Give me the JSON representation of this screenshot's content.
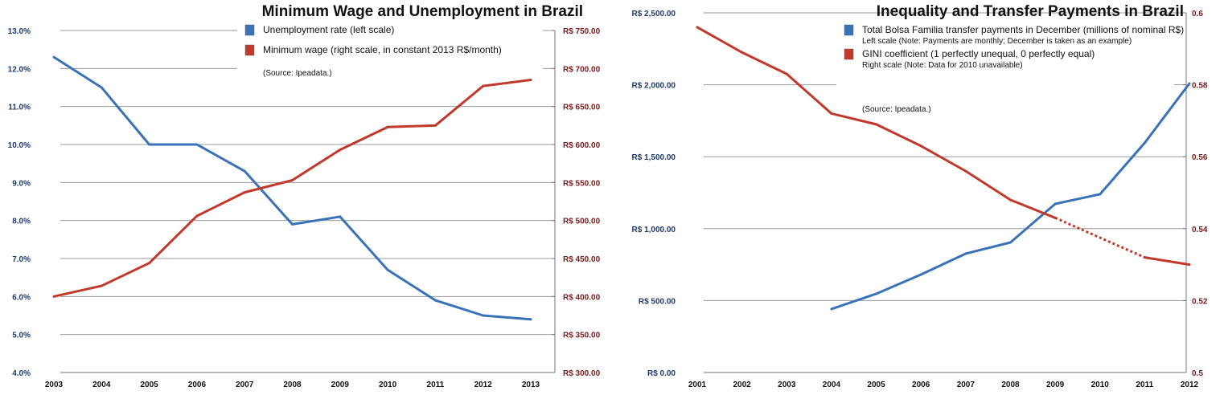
{
  "chart_data": [
    {
      "type": "line",
      "title": "Minimum Wage and Unemployment in Brazil",
      "categories": [
        "2003",
        "2004",
        "2005",
        "2006",
        "2007",
        "2008",
        "2009",
        "2010",
        "2011",
        "2012",
        "2013"
      ],
      "left_axis": {
        "ylim": [
          4,
          13
        ],
        "ticks": [
          "4.0%",
          "5.0%",
          "6.0%",
          "7.0%",
          "8.0%",
          "9.0%",
          "10.0%",
          "11.0%",
          "12.0%",
          "13.0%"
        ],
        "color": "#1f3a6e"
      },
      "right_axis": {
        "ylim": [
          300,
          750
        ],
        "ticks": [
          "R$ 300.00",
          "R$ 350.00",
          "R$ 400.00",
          "R$ 450.00",
          "R$ 500.00",
          "R$ 550.00",
          "R$ 600.00",
          "R$ 650.00",
          "R$ 700.00",
          "R$ 750.00"
        ],
        "color": "#7a1a1a"
      },
      "grid": true,
      "legend_position": "top-right",
      "series": [
        {
          "name": "Unemployment rate (left scale)",
          "axis": "left",
          "color": "#3a72b8",
          "values": [
            12.3,
            11.5,
            10.0,
            10.0,
            9.3,
            7.9,
            8.1,
            6.7,
            5.9,
            5.5,
            5.4
          ]
        },
        {
          "name": "Minimum wage (right scale, in constant 2013 R$/month)",
          "axis": "right",
          "color": "#c0392b",
          "values": [
            400,
            414,
            444,
            506,
            537,
            553,
            593,
            623,
            625,
            677,
            685
          ]
        }
      ],
      "source": "(Source: Ipeadata.)"
    },
    {
      "type": "line",
      "title": "Inequality and Transfer Payments in Brazil",
      "categories": [
        "2001",
        "2002",
        "2003",
        "2004",
        "2005",
        "2006",
        "2007",
        "2008",
        "2009",
        "2010",
        "2011",
        "2012"
      ],
      "left_axis": {
        "ylim": [
          0,
          2500
        ],
        "ticks": [
          "R$ 0.00",
          "R$ 500.00",
          "R$ 1,000.00",
          "R$ 1,500.00",
          "R$ 2,000.00",
          "R$ 2,500.00"
        ],
        "color": "#1f3a6e"
      },
      "right_axis": {
        "ylim": [
          0.5,
          0.6
        ],
        "ticks": [
          "0.5",
          "0.52",
          "0.54",
          "0.56",
          "0.58",
          "0.6"
        ],
        "color": "#7a1a1a"
      },
      "grid": true,
      "legend_position": "top-right",
      "series": [
        {
          "name": "Total Bolsa Familia transfer payments in December (millions of nominal R$)",
          "note": "Left scale (Note: Payments are monthly; December is taken as an example)",
          "axis": "left",
          "color": "#3a72b8",
          "values": [
            null,
            null,
            null,
            441,
            547,
            681,
            826,
            904,
            1172,
            1239,
            1596,
            2009
          ]
        },
        {
          "name": "GINI coefficient (1 perfectly unequal, 0 perfectly equal)",
          "note": "Right scale (Note: Data for 2010 unavailable)",
          "axis": "right",
          "color": "#c0392b",
          "values": [
            0.596,
            0.589,
            0.583,
            0.572,
            0.569,
            0.563,
            0.556,
            0.548,
            0.543,
            null,
            0.532,
            0.53
          ]
        }
      ],
      "source": "(Source: Ipeadata.)"
    }
  ]
}
